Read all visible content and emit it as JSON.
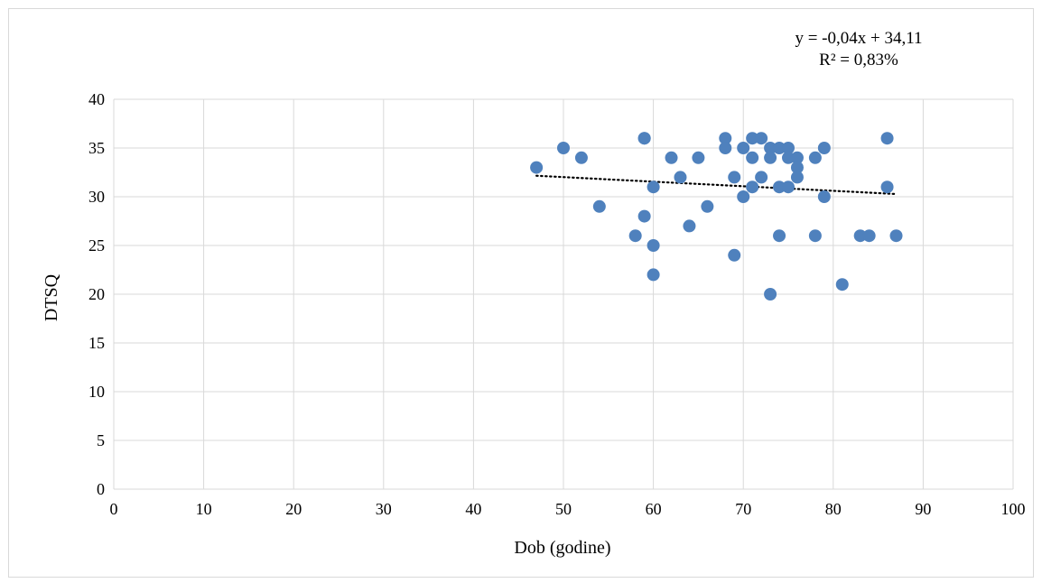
{
  "chart_data": {
    "type": "scatter",
    "xlabel": "Dob (godine)",
    "ylabel": "DTSQ",
    "xlim": [
      0,
      100
    ],
    "ylim": [
      0,
      40
    ],
    "x_ticks": [
      0,
      10,
      20,
      30,
      40,
      50,
      60,
      70,
      80,
      90,
      100
    ],
    "y_ticks": [
      0,
      5,
      10,
      15,
      20,
      25,
      30,
      35,
      40
    ],
    "grid": true,
    "legend": "none",
    "marker_color": "#4f81bd",
    "trendline_color": "#000000",
    "points": [
      {
        "x": 47,
        "y": 33
      },
      {
        "x": 50,
        "y": 35
      },
      {
        "x": 52,
        "y": 34
      },
      {
        "x": 54,
        "y": 29
      },
      {
        "x": 58,
        "y": 26
      },
      {
        "x": 59,
        "y": 36
      },
      {
        "x": 59,
        "y": 36
      },
      {
        "x": 59,
        "y": 28
      },
      {
        "x": 60,
        "y": 31
      },
      {
        "x": 60,
        "y": 25
      },
      {
        "x": 60,
        "y": 22
      },
      {
        "x": 62,
        "y": 34
      },
      {
        "x": 63,
        "y": 32
      },
      {
        "x": 64,
        "y": 27
      },
      {
        "x": 65,
        "y": 34
      },
      {
        "x": 66,
        "y": 29
      },
      {
        "x": 68,
        "y": 36
      },
      {
        "x": 68,
        "y": 35
      },
      {
        "x": 69,
        "y": 32
      },
      {
        "x": 69,
        "y": 24
      },
      {
        "x": 70,
        "y": 35
      },
      {
        "x": 70,
        "y": 30
      },
      {
        "x": 71,
        "y": 36
      },
      {
        "x": 71,
        "y": 34
      },
      {
        "x": 71,
        "y": 31
      },
      {
        "x": 72,
        "y": 36
      },
      {
        "x": 72,
        "y": 32
      },
      {
        "x": 73,
        "y": 35
      },
      {
        "x": 73,
        "y": 34
      },
      {
        "x": 73,
        "y": 20
      },
      {
        "x": 74,
        "y": 35
      },
      {
        "x": 74,
        "y": 31
      },
      {
        "x": 74,
        "y": 26
      },
      {
        "x": 75,
        "y": 35
      },
      {
        "x": 75,
        "y": 34
      },
      {
        "x": 75,
        "y": 31
      },
      {
        "x": 76,
        "y": 34
      },
      {
        "x": 76,
        "y": 33
      },
      {
        "x": 76,
        "y": 32
      },
      {
        "x": 78,
        "y": 34
      },
      {
        "x": 78,
        "y": 26
      },
      {
        "x": 79,
        "y": 35
      },
      {
        "x": 79,
        "y": 30
      },
      {
        "x": 81,
        "y": 21
      },
      {
        "x": 83,
        "y": 26
      },
      {
        "x": 84,
        "y": 26
      },
      {
        "x": 86,
        "y": 36
      },
      {
        "x": 86,
        "y": 31
      },
      {
        "x": 87,
        "y": 26
      }
    ],
    "trendline": {
      "type": "linear",
      "style": "dotted",
      "x_range": [
        47,
        87
      ],
      "equation": "y = -0,04x + 34,11",
      "r_squared": "R² = 0,83%"
    }
  }
}
